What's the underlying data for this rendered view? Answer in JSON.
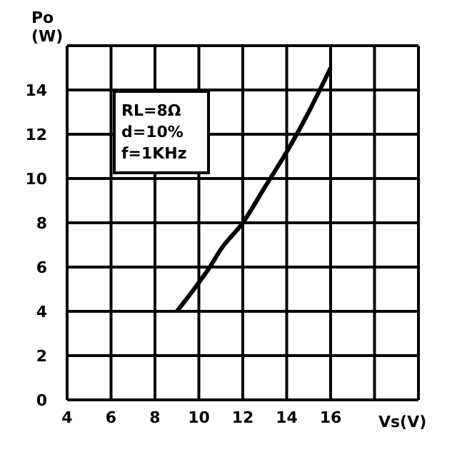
{
  "chart_data": {
    "type": "line",
    "xlabel": "Vs(V)",
    "ylabel": "Po (W)",
    "annotations": [
      "RL=8Ω",
      "d=10%",
      "f=1KHz"
    ],
    "series": [
      {
        "color": "#000000",
        "x": [
          9,
          10,
          10.5,
          11,
          12,
          13,
          13.25,
          14,
          15,
          16
        ],
        "values": [
          4,
          5.3,
          6,
          6.8,
          8,
          9.6,
          10,
          11.2,
          13,
          15
        ]
      }
    ],
    "xlim": [
      4,
      20
    ],
    "xticks": [
      4,
      6,
      8,
      10,
      12,
      14,
      16,
      {
        "value": 18,
        "label": null
      },
      {
        "value": 20,
        "label": null
      }
    ],
    "ylim": [
      0,
      16
    ],
    "yticks": [
      0,
      2,
      4,
      6,
      8,
      10,
      12,
      14,
      {
        "value": 16,
        "label": null
      }
    ],
    "grid": true,
    "marker": "none",
    "line_style": "solid"
  }
}
